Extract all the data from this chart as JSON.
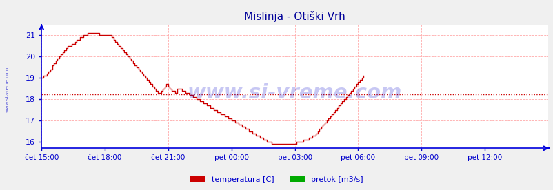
{
  "title": "Mislinja - Otiški Vrh",
  "title_color": "#000099",
  "bg_color": "#f0f0f0",
  "plot_bg_color": "#ffffff",
  "grid_color": "#ffaaaa",
  "axis_color": "#0000dd",
  "tick_color": "#0000cc",
  "line_color": "#cc0000",
  "avg_line_color": "#cc0000",
  "avg_line_value": 18.22,
  "watermark_color": "#0000cc",
  "watermark_text": "www.si-vreme.com",
  "sidewater_text": "www.si-vreme.com",
  "legend_labels": [
    "temperatura [C]",
    "pretok [m3/s]"
  ],
  "legend_colors": [
    "#cc0000",
    "#00aa00"
  ],
  "x_tick_labels": [
    "čet 15:00",
    "čet 18:00",
    "čet 21:00",
    "pet 00:00",
    "pet 03:00",
    "pet 06:00",
    "pet 09:00",
    "pet 12:00"
  ],
  "x_tick_positions": [
    0,
    36,
    72,
    108,
    144,
    180,
    216,
    252
  ],
  "ylim": [
    15.7,
    21.5
  ],
  "xlim": [
    0,
    288
  ],
  "yticks": [
    16,
    17,
    18,
    19,
    20,
    21
  ],
  "temp_data": [
    19.0,
    19.1,
    19.1,
    19.2,
    19.3,
    19.4,
    19.6,
    19.7,
    19.8,
    19.9,
    20.0,
    20.1,
    20.2,
    20.3,
    20.4,
    20.5,
    20.5,
    20.6,
    20.6,
    20.7,
    20.8,
    20.8,
    20.9,
    20.9,
    21.0,
    21.0,
    21.1,
    21.1,
    21.1,
    21.1,
    21.1,
    21.1,
    21.1,
    21.0,
    21.0,
    21.0,
    21.0,
    21.0,
    21.0,
    21.0,
    20.9,
    20.8,
    20.7,
    20.6,
    20.5,
    20.4,
    20.3,
    20.2,
    20.1,
    20.0,
    19.9,
    19.8,
    19.7,
    19.6,
    19.5,
    19.4,
    19.3,
    19.2,
    19.1,
    19.0,
    18.9,
    18.8,
    18.7,
    18.6,
    18.5,
    18.4,
    18.3,
    18.3,
    18.4,
    18.5,
    18.6,
    18.7,
    18.6,
    18.5,
    18.4,
    18.4,
    18.3,
    18.5,
    18.5,
    18.5,
    18.4,
    18.4,
    18.3,
    18.3,
    18.2,
    18.2,
    18.1,
    18.1,
    18.0,
    18.0,
    17.9,
    17.9,
    17.8,
    17.8,
    17.7,
    17.7,
    17.6,
    17.6,
    17.5,
    17.5,
    17.4,
    17.4,
    17.3,
    17.3,
    17.2,
    17.2,
    17.1,
    17.1,
    17.0,
    17.0,
    16.9,
    16.9,
    16.8,
    16.8,
    16.7,
    16.7,
    16.6,
    16.6,
    16.5,
    16.5,
    16.4,
    16.4,
    16.3,
    16.3,
    16.2,
    16.2,
    16.1,
    16.1,
    16.0,
    16.0,
    16.0,
    15.9,
    15.9,
    15.9,
    15.9,
    15.9,
    15.9,
    15.9,
    15.9,
    15.9,
    15.9,
    15.9,
    15.9,
    15.9,
    15.9,
    16.0,
    16.0,
    16.0,
    16.0,
    16.1,
    16.1,
    16.1,
    16.2,
    16.2,
    16.3,
    16.3,
    16.4,
    16.5,
    16.6,
    16.7,
    16.8,
    16.9,
    17.0,
    17.1,
    17.2,
    17.3,
    17.4,
    17.5,
    17.6,
    17.7,
    17.8,
    17.9,
    18.0,
    18.1,
    18.2,
    18.3,
    18.4,
    18.5,
    18.6,
    18.7,
    18.8,
    18.9,
    19.0,
    19.1
  ]
}
